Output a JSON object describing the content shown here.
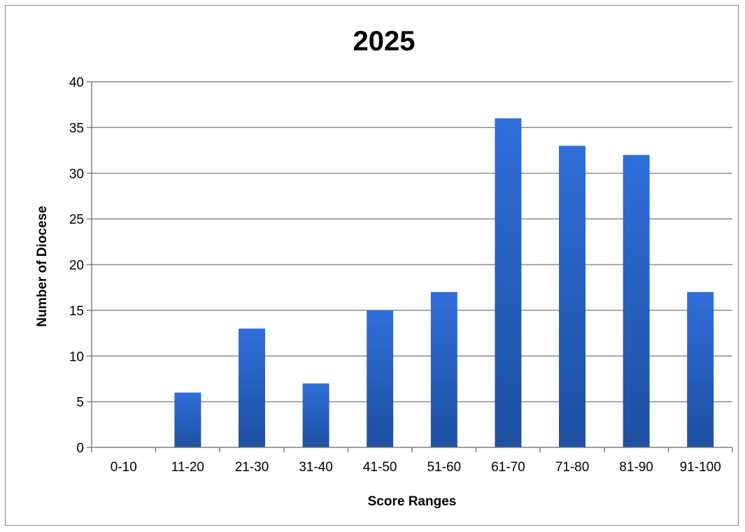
{
  "chart_data": {
    "type": "bar",
    "title": "2025",
    "xlabel": "Score Ranges",
    "ylabel": "Number of Diocese",
    "categories": [
      "0-10",
      "11-20",
      "21-30",
      "31-40",
      "41-50",
      "51-60",
      "61-70",
      "71-80",
      "81-90",
      "91-100"
    ],
    "values": [
      0,
      6,
      13,
      7,
      15,
      17,
      36,
      33,
      32,
      17
    ],
    "ylim": [
      0,
      40
    ],
    "yticks": [
      "0",
      "5",
      "10",
      "15",
      "20",
      "25",
      "30",
      "35",
      "40"
    ],
    "grid": true,
    "legend": "none",
    "colors": {
      "bar_top": "#2f6fdb",
      "bar_bottom": "#1f4fa0",
      "grid": "#8c8c8c",
      "axis": "#7f7f7f"
    }
  }
}
